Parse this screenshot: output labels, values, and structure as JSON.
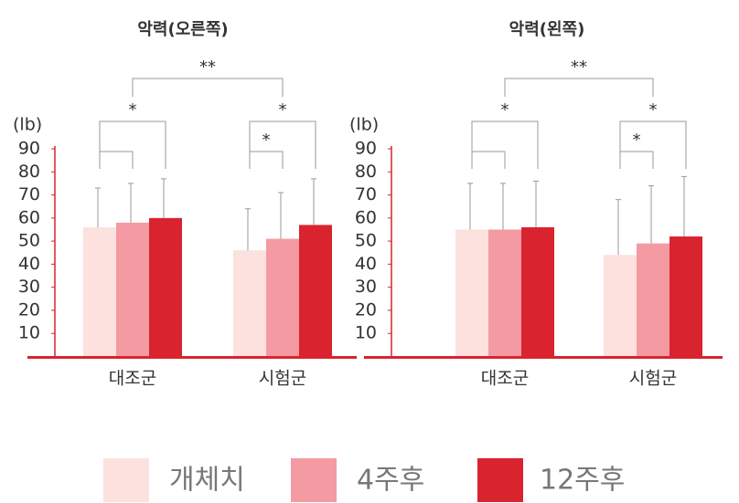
{
  "chart_data": [
    {
      "type": "bar",
      "title": "악력(오른쪽)",
      "y_label": "(lb)",
      "categories": [
        "대조군",
        "시험군"
      ],
      "series": [
        {
          "name": "개체치",
          "color": "#fce1de",
          "values": [
            56,
            46
          ],
          "errors": [
            17,
            18
          ]
        },
        {
          "name": "4주후",
          "color": "#f49aa3",
          "values": [
            58,
            51
          ],
          "errors": [
            17,
            20
          ]
        },
        {
          "name": "12주후",
          "color": "#d9232e",
          "values": [
            60,
            57
          ],
          "errors": [
            17,
            20
          ]
        }
      ],
      "ylim": [
        0,
        90
      ],
      "yticks": [
        10,
        20,
        30,
        40,
        50,
        60,
        70,
        80,
        90
      ],
      "annotations": [
        "**",
        "*",
        "*",
        "*"
      ]
    },
    {
      "type": "bar",
      "title": "악력(왼쪽)",
      "y_label": "(lb)",
      "categories": [
        "대조군",
        "시험군"
      ],
      "series": [
        {
          "name": "개체치",
          "color": "#fce1de",
          "values": [
            55,
            44
          ],
          "errors": [
            20,
            24
          ]
        },
        {
          "name": "4주후",
          "color": "#f49aa3",
          "values": [
            55,
            49
          ],
          "errors": [
            20,
            25
          ]
        },
        {
          "name": "12주후",
          "color": "#d9232e",
          "values": [
            56,
            52
          ],
          "errors": [
            20,
            26
          ]
        }
      ],
      "ylim": [
        0,
        90
      ],
      "yticks": [
        10,
        20,
        30,
        40,
        50,
        60,
        70,
        80,
        90
      ],
      "annotations": [
        "**",
        "*",
        "*",
        "*"
      ]
    }
  ]
}
